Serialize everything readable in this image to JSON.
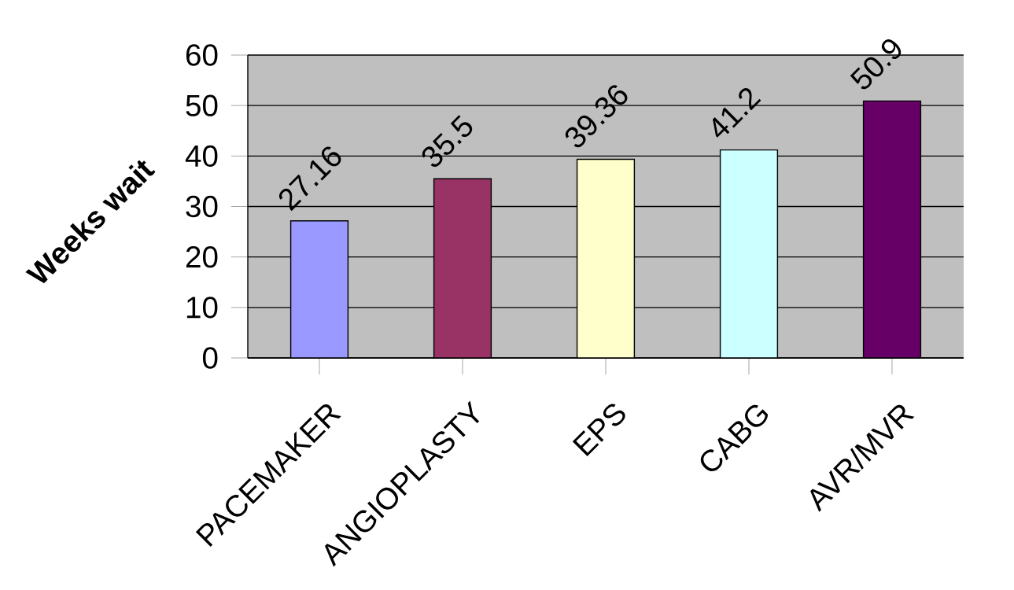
{
  "chart_data": {
    "type": "bar",
    "ylabel": "Weeks wait",
    "categories": [
      "PACEMAKER",
      "ANGIOPLASTY",
      "EPS",
      "CABG",
      "AVR/MVR"
    ],
    "values": [
      27.16,
      35.5,
      39.36,
      41.2,
      50.9
    ],
    "colors": [
      "#9999ff",
      "#993366",
      "#ffffcc",
      "#ccffff",
      "#660066"
    ],
    "ylim": [
      0,
      60
    ],
    "yticks": [
      0,
      10,
      20,
      30,
      40,
      50,
      60
    ],
    "grid": "y",
    "data_labels": true
  }
}
